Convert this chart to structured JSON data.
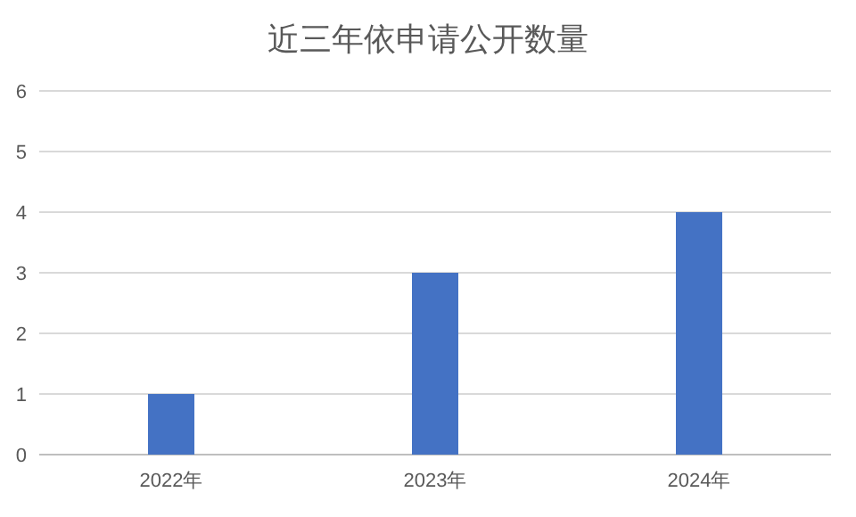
{
  "chart_data": {
    "type": "bar",
    "title": "近三年依申请公开数量",
    "categories": [
      "2022年",
      "2023年",
      "2024年"
    ],
    "values": [
      1,
      3,
      4
    ],
    "color": "#4472c4",
    "ylim": [
      0,
      6
    ],
    "yticks": [
      0,
      1,
      2,
      3,
      4,
      5,
      6
    ],
    "grid": "y"
  }
}
